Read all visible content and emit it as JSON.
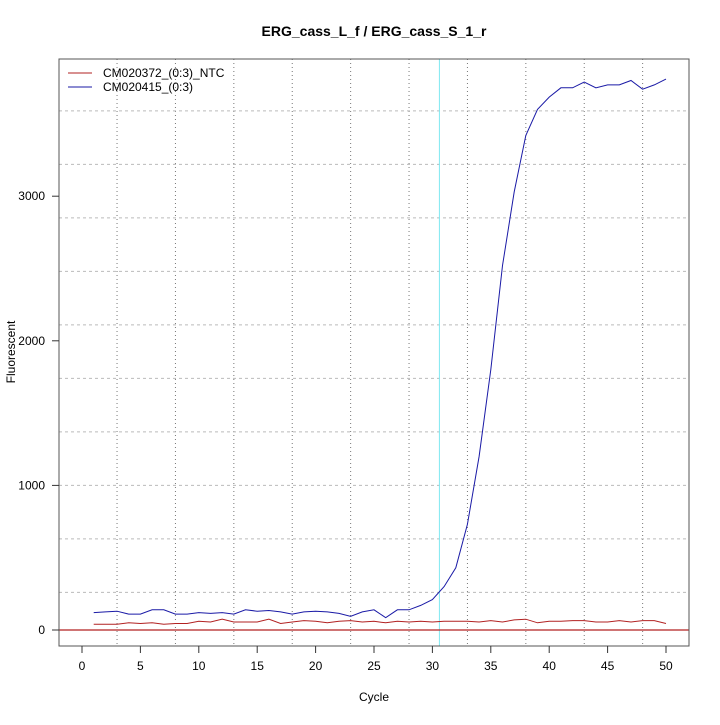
{
  "chart_data": {
    "type": "line",
    "title": "ERG_cass_L_f / ERG_cass_S_1_r",
    "xlabel": "Cycle",
    "ylabel": "Fluorescent",
    "xlim": [
      -2,
      52
    ],
    "ylim": [
      -110,
      3900
    ],
    "x_ticks": [
      0,
      5,
      10,
      15,
      20,
      25,
      30,
      35,
      40,
      45,
      50
    ],
    "y_ticks": [
      0,
      1000,
      2000,
      3000
    ],
    "grid": true,
    "vertical_grid_x": [
      3,
      8,
      13,
      18,
      23,
      28,
      33,
      38,
      43,
      48
    ],
    "horizontal_grid_y": [
      260,
      630,
      1000,
      1370,
      1740,
      2110,
      2480,
      2850,
      3220,
      3590
    ],
    "vertical_marker_x": 30.6,
    "vertical_marker_color": "#7fe8f0",
    "baseline_y": 0,
    "baseline_color": "#b22222",
    "legend_position": "top-left",
    "x": [
      1,
      2,
      3,
      4,
      5,
      6,
      7,
      8,
      9,
      10,
      11,
      12,
      13,
      14,
      15,
      16,
      17,
      18,
      19,
      20,
      21,
      22,
      23,
      24,
      25,
      26,
      27,
      28,
      29,
      30,
      31,
      32,
      33,
      34,
      35,
      36,
      37,
      38,
      39,
      40,
      41,
      42,
      43,
      44,
      45,
      46,
      47,
      48,
      49,
      50
    ],
    "series": [
      {
        "name": "CM020372_(0:3)_NTC",
        "color": "#b22222",
        "values": [
          40,
          40,
          40,
          50,
          45,
          50,
          40,
          45,
          45,
          60,
          55,
          75,
          55,
          55,
          55,
          75,
          45,
          55,
          65,
          60,
          50,
          60,
          65,
          55,
          60,
          50,
          60,
          55,
          60,
          55,
          60,
          60,
          60,
          55,
          65,
          55,
          70,
          75,
          50,
          60,
          60,
          65,
          65,
          55,
          55,
          65,
          55,
          65,
          65,
          45
        ]
      },
      {
        "name": "CM020415_(0:3)",
        "color": "#1a1aa6",
        "values": [
          120,
          125,
          130,
          110,
          110,
          140,
          140,
          110,
          110,
          120,
          115,
          120,
          110,
          140,
          130,
          135,
          125,
          110,
          125,
          130,
          125,
          115,
          95,
          125,
          140,
          85,
          140,
          140,
          170,
          210,
          300,
          430,
          730,
          1200,
          1800,
          2520,
          3030,
          3420,
          3600,
          3685,
          3750,
          3750,
          3790,
          3750,
          3770,
          3770,
          3800,
          3740,
          3770,
          3810
        ]
      }
    ]
  }
}
